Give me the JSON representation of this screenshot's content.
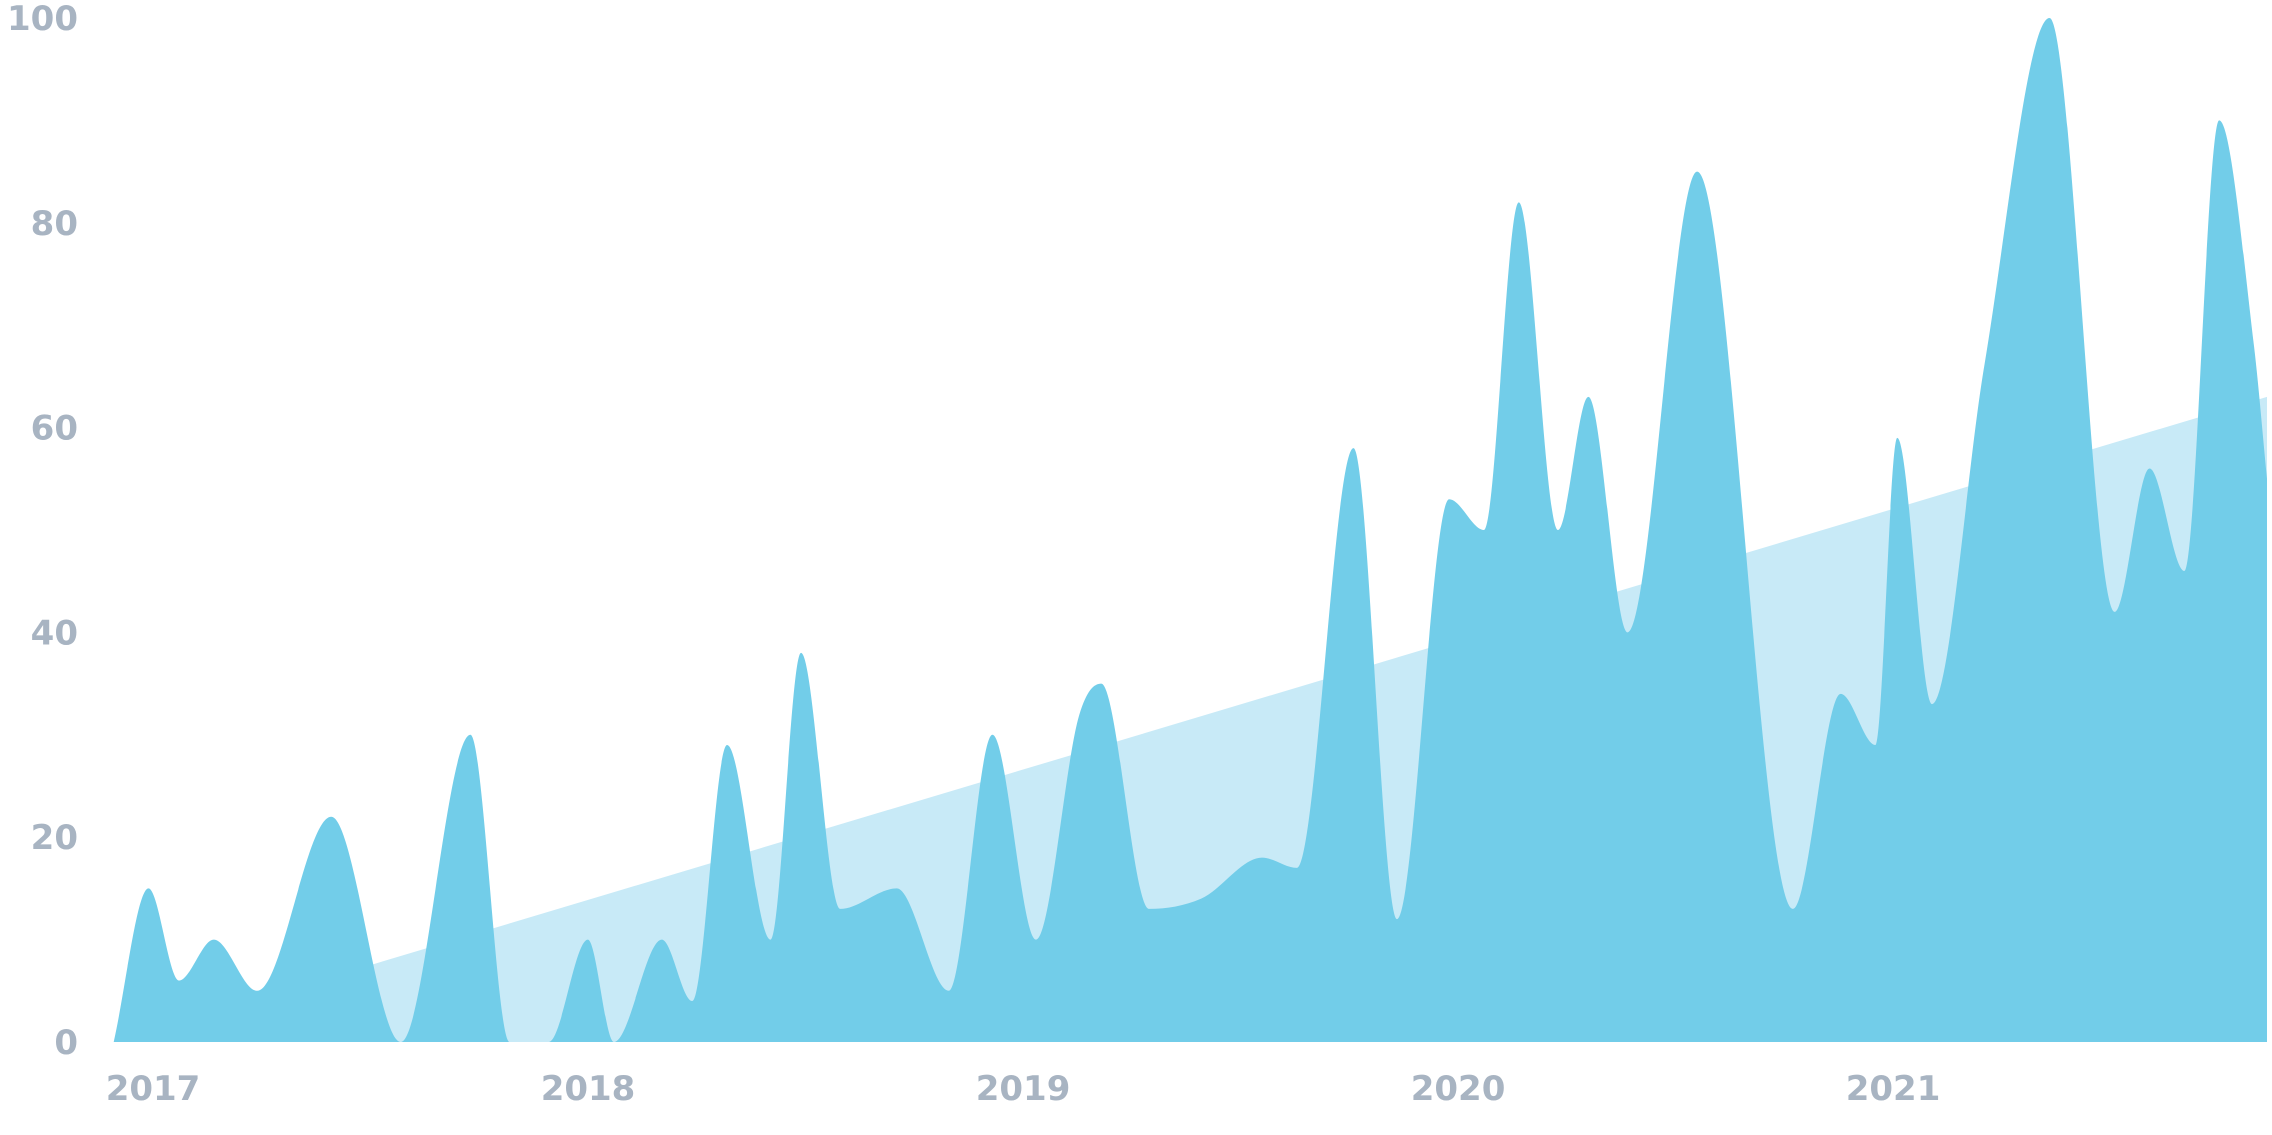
{
  "chart_data": {
    "type": "area",
    "xlim": [
      2016.98,
      2021.95
    ],
    "ylim": [
      0,
      100
    ],
    "y_ticks": [
      "0",
      "20",
      "40",
      "60",
      "80",
      "100"
    ],
    "x_ticks": [
      {
        "label": "2017",
        "x": 2017.0
      },
      {
        "label": "2018",
        "x": 2018.0
      },
      {
        "label": "2019",
        "x": 2019.0
      },
      {
        "label": "2020",
        "x": 2020.0
      },
      {
        "label": "2021",
        "x": 2021.0
      }
    ],
    "grid": false,
    "legend": "none",
    "colors": {
      "area": "#72cde9",
      "trend": "#c8eaf7",
      "tick_text": "#a8b4c2"
    },
    "series": [
      {
        "values": [
          [
            2017.0,
            0
          ],
          [
            2017.08,
            15
          ],
          [
            2017.15,
            6
          ],
          [
            2017.23,
            10
          ],
          [
            2017.33,
            5
          ],
          [
            2017.5,
            22
          ],
          [
            2017.66,
            0
          ],
          [
            2017.82,
            30
          ],
          [
            2017.91,
            0
          ],
          [
            2018.0,
            0
          ],
          [
            2018.09,
            10
          ],
          [
            2018.15,
            0
          ],
          [
            2018.26,
            10
          ],
          [
            2018.33,
            4
          ],
          [
            2018.41,
            29
          ],
          [
            2018.51,
            10
          ],
          [
            2018.58,
            38
          ],
          [
            2018.67,
            13
          ],
          [
            2018.8,
            15
          ],
          [
            2018.92,
            5
          ],
          [
            2019.02,
            30
          ],
          [
            2019.12,
            10
          ],
          [
            2019.22,
            32
          ],
          [
            2019.27,
            35
          ],
          [
            2019.38,
            13
          ],
          [
            2019.5,
            14
          ],
          [
            2019.64,
            18
          ],
          [
            2019.72,
            17
          ],
          [
            2019.85,
            58
          ],
          [
            2019.95,
            12
          ],
          [
            2020.07,
            53
          ],
          [
            2020.15,
            50
          ],
          [
            2020.23,
            82
          ],
          [
            2020.32,
            50
          ],
          [
            2020.39,
            63
          ],
          [
            2020.48,
            40
          ],
          [
            2020.64,
            85
          ],
          [
            2020.86,
            13
          ],
          [
            2020.97,
            34
          ],
          [
            2021.05,
            29
          ],
          [
            2021.1,
            59
          ],
          [
            2021.18,
            33
          ],
          [
            2021.3,
            66
          ],
          [
            2021.45,
            100
          ],
          [
            2021.6,
            42
          ],
          [
            2021.68,
            56
          ],
          [
            2021.76,
            46
          ],
          [
            2021.84,
            90
          ],
          [
            2021.92,
            68
          ],
          [
            2021.95,
            55
          ]
        ]
      }
    ],
    "trend": [
      [
        2017.55,
        7
      ],
      [
        2021.95,
        63
      ]
    ]
  }
}
